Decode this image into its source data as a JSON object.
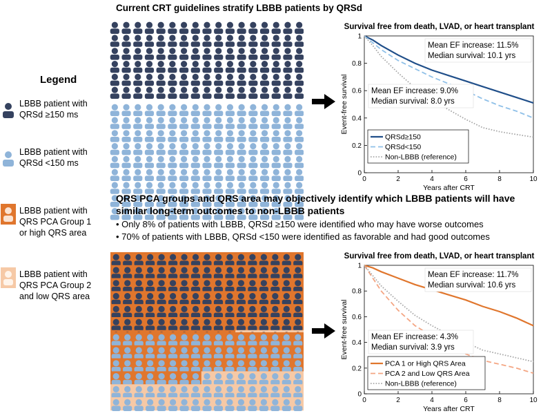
{
  "top_title": "Current CRT guidelines stratify LBBB patients by QRSd",
  "legend": {
    "title": "Legend",
    "items": [
      {
        "lines": [
          "LBBB patient with",
          "QRSd ≥150 ms"
        ],
        "fill": "#35425f",
        "outline": false
      },
      {
        "lines": [
          "LBBB patient with",
          "QRSd <150 ms"
        ],
        "fill": "#8fb4d9",
        "outline": false
      },
      {
        "lines": [
          "LBBB patient with",
          "QRS PCA Group 1",
          "or high QRS area"
        ],
        "fill": "#e0762d",
        "outline": true
      },
      {
        "lines": [
          "LBBB patient with",
          "QRS PCA Group 2",
          "and low QRS area"
        ],
        "fill": "#f6c9a6",
        "outline": true
      }
    ]
  },
  "finding": {
    "line1": "QRS PCA groups and QRS area may objectively identify which LBBB patients will have",
    "line2": "similar long-term outcomes to non-LBBB patients",
    "bullets": [
      "Only 8% of patients with LBBB, QRSd ≥150 were identified who may have worse outcomes",
      "70% of patients with LBBB, QRSd <150 were identified as favorable and had good outcomes"
    ]
  },
  "colors": {
    "dark_navy": "#35425f",
    "light_blue": "#8fb4d9",
    "orange": "#e0762d",
    "peach": "#f6c9a6",
    "navy_line": "#1f4e89",
    "gray_line": "#a6a6a6"
  },
  "chart_data": [
    {
      "type": "line",
      "title": "Survival free from death, LVAD, or heart transplant",
      "xlabel": "Years after CRT",
      "ylabel": "Event-free survival",
      "xlim": [
        0,
        10
      ],
      "ylim": [
        0,
        1
      ],
      "xticks": [
        0,
        2,
        4,
        6,
        8,
        10
      ],
      "yticks": [
        0,
        0.2,
        0.4,
        0.6,
        0.8,
        1
      ],
      "annotations": [
        {
          "lines": [
            "Mean EF increase: 11.5%",
            "Median survival: 10.1 yrs"
          ],
          "box": true
        },
        {
          "lines": [
            "Mean EF increase: 9.0%",
            "Median survival: 8.0 yrs"
          ],
          "box": true
        }
      ],
      "legend_position": "bottom-left",
      "series": [
        {
          "name": "QRSd≥150",
          "style": "solid",
          "color": "#1f4e89",
          "x": [
            0,
            0.5,
            1,
            2,
            3,
            4,
            5,
            6,
            7,
            8,
            9,
            10
          ],
          "y": [
            1,
            0.97,
            0.93,
            0.86,
            0.8,
            0.75,
            0.71,
            0.67,
            0.63,
            0.59,
            0.55,
            0.51
          ]
        },
        {
          "name": "QRSd<150",
          "style": "dashed",
          "color": "#8fc0e8",
          "x": [
            0,
            0.5,
            1,
            2,
            3,
            4,
            5,
            6,
            7,
            8,
            9,
            10
          ],
          "y": [
            1,
            0.95,
            0.9,
            0.82,
            0.76,
            0.7,
            0.65,
            0.6,
            0.54,
            0.49,
            0.45,
            0.4
          ]
        },
        {
          "name": "Non-LBBB (reference)",
          "style": "dotted",
          "color": "#a6a6a6",
          "x": [
            0,
            0.5,
            1,
            2,
            3,
            4,
            5,
            6,
            7,
            8,
            9,
            10
          ],
          "y": [
            1,
            0.93,
            0.85,
            0.73,
            0.62,
            0.53,
            0.46,
            0.39,
            0.33,
            0.3,
            0.28,
            0.26
          ]
        }
      ]
    },
    {
      "type": "line",
      "title": "Survival free from death, LVAD, or heart transplant",
      "xlabel": "Years after CRT",
      "ylabel": "Event-free survival",
      "xlim": [
        0,
        10
      ],
      "ylim": [
        0,
        1
      ],
      "xticks": [
        0,
        2,
        4,
        6,
        8,
        10
      ],
      "yticks": [
        0,
        0.2,
        0.4,
        0.6,
        0.8,
        1
      ],
      "annotations": [
        {
          "lines": [
            "Mean EF increase: 11.7%",
            "Median survival: 10.6 yrs"
          ],
          "box": true
        },
        {
          "lines": [
            "Mean EF increase: 4.3%",
            "Median survival: 3.9 yrs"
          ],
          "box": true
        }
      ],
      "legend_position": "bottom-left",
      "series": [
        {
          "name": "PCA 1 or High QRS Area",
          "style": "solid",
          "color": "#e0762d",
          "x": [
            0,
            0.5,
            1,
            2,
            3,
            4,
            5,
            6,
            7,
            8,
            9,
            10
          ],
          "y": [
            1,
            0.98,
            0.95,
            0.9,
            0.85,
            0.81,
            0.77,
            0.73,
            0.68,
            0.64,
            0.59,
            0.53
          ]
        },
        {
          "name": "PCA 2 and Low QRS Area",
          "style": "dashed",
          "color": "#f4a582",
          "x": [
            0,
            0.5,
            1,
            2,
            3,
            4,
            5,
            6,
            7,
            8,
            9,
            10
          ],
          "y": [
            1,
            0.9,
            0.8,
            0.65,
            0.53,
            0.45,
            0.38,
            0.31,
            0.26,
            0.23,
            0.2,
            0.16
          ]
        },
        {
          "name": "Non-LBBB (reference)",
          "style": "dotted",
          "color": "#a6a6a6",
          "x": [
            0,
            0.5,
            1,
            2,
            3,
            4,
            5,
            6,
            7,
            8,
            9,
            10
          ],
          "y": [
            1,
            0.92,
            0.84,
            0.72,
            0.61,
            0.53,
            0.46,
            0.4,
            0.34,
            0.31,
            0.28,
            0.25
          ]
        }
      ]
    }
  ]
}
